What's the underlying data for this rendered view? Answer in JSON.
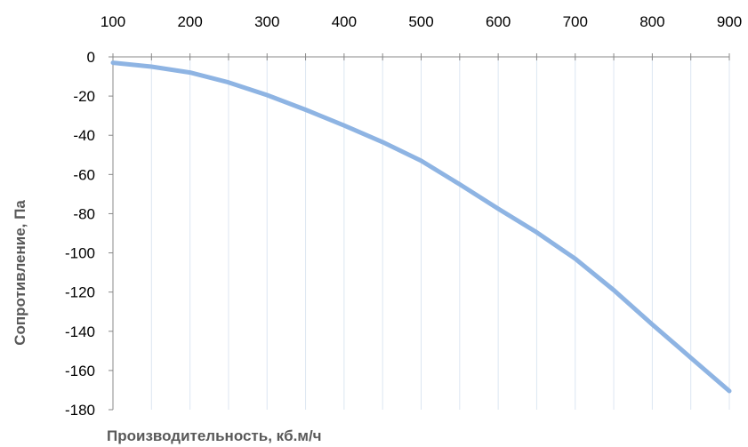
{
  "chart_data": {
    "type": "line",
    "title": "",
    "xlabel": "Производительность, кб.м/ч",
    "ylabel": "Сопротивление, Па",
    "xlim": [
      100,
      900
    ],
    "ylim": [
      -180,
      0
    ],
    "x_ticks": [
      100,
      200,
      300,
      400,
      500,
      600,
      700,
      800,
      900
    ],
    "y_ticks": [
      0,
      -20,
      -40,
      -60,
      -80,
      -100,
      -120,
      -140,
      -160,
      -180
    ],
    "x_axis_position": "top",
    "grid": "vertical",
    "legend": "none",
    "series": [
      {
        "color": "#8eb4e3",
        "x": [
          100,
          150,
          200,
          250,
          300,
          350,
          400,
          450,
          500,
          550,
          600,
          650,
          700,
          750,
          800,
          850,
          900
        ],
        "y": [
          -3,
          -5,
          -8,
          -13,
          -19.5,
          -27,
          -35,
          -43.5,
          -53,
          -65,
          -77.5,
          -89.5,
          -103,
          -119,
          -136.5,
          -153.5,
          -170.5
        ]
      }
    ]
  }
}
